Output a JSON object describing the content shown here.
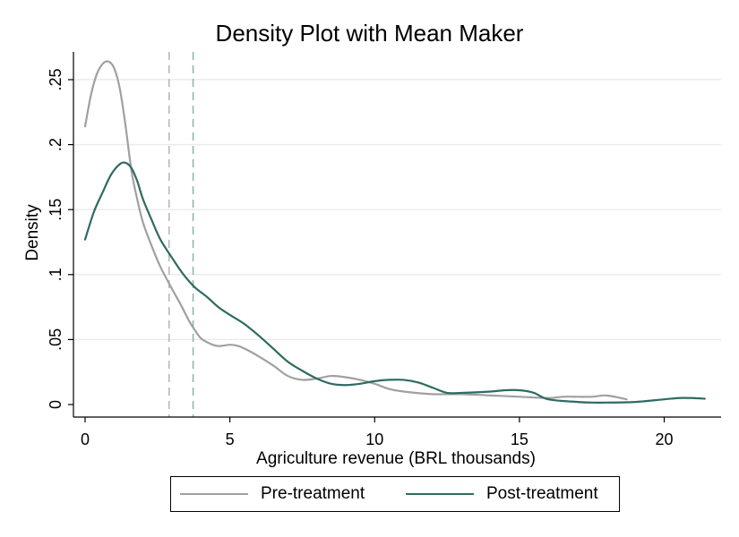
{
  "chart_data": {
    "type": "line",
    "title": "Density Plot with Mean Maker",
    "xlabel": "Agriculture revenue (BRL thousands)",
    "ylabel": "Density",
    "xlim": [
      0,
      21.5
    ],
    "ylim": [
      0,
      0.27
    ],
    "x_ticks": [
      0,
      5,
      10,
      15,
      20
    ],
    "x_tick_labels": [
      "0",
      "5",
      "10",
      "15",
      "20"
    ],
    "y_ticks": [
      0,
      0.05,
      0.1,
      0.15,
      0.2,
      0.25
    ],
    "y_tick_labels": [
      "0",
      ".05",
      ".1",
      ".15",
      ".2",
      ".25"
    ],
    "grid": "horizontal",
    "legend_position": "bottom",
    "series": [
      {
        "name": "Pre-treatment",
        "color": "#a0a0a0",
        "points": [
          [
            0,
            0.214
          ],
          [
            0.2,
            0.238
          ],
          [
            0.4,
            0.254
          ],
          [
            0.6,
            0.262
          ],
          [
            0.8,
            0.264
          ],
          [
            1.0,
            0.259
          ],
          [
            1.2,
            0.243
          ],
          [
            1.4,
            0.214
          ],
          [
            1.6,
            0.18
          ],
          [
            1.8,
            0.158
          ],
          [
            2.0,
            0.14
          ],
          [
            2.3,
            0.122
          ],
          [
            2.6,
            0.106
          ],
          [
            3.0,
            0.089
          ],
          [
            3.3,
            0.077
          ],
          [
            3.6,
            0.064
          ],
          [
            3.8,
            0.057
          ],
          [
            4.0,
            0.051
          ],
          [
            4.3,
            0.047
          ],
          [
            4.6,
            0.045
          ],
          [
            5.0,
            0.046
          ],
          [
            5.3,
            0.045
          ],
          [
            5.6,
            0.042
          ],
          [
            6.0,
            0.037
          ],
          [
            6.5,
            0.03
          ],
          [
            7.0,
            0.022
          ],
          [
            7.5,
            0.019
          ],
          [
            8.0,
            0.02
          ],
          [
            8.5,
            0.022
          ],
          [
            9.0,
            0.021
          ],
          [
            9.5,
            0.019
          ],
          [
            10.0,
            0.016
          ],
          [
            10.5,
            0.012
          ],
          [
            11.0,
            0.01
          ],
          [
            12.0,
            0.008
          ],
          [
            13.0,
            0.008
          ],
          [
            14.0,
            0.007
          ],
          [
            15.0,
            0.006
          ],
          [
            16.0,
            0.005
          ],
          [
            16.5,
            0.006
          ],
          [
            17.0,
            0.006
          ],
          [
            17.5,
            0.006
          ],
          [
            18.0,
            0.007
          ],
          [
            18.5,
            0.005
          ],
          [
            18.7,
            0.004
          ]
        ]
      },
      {
        "name": "Post-treatment",
        "color": "#2e6b62",
        "points": [
          [
            0,
            0.127
          ],
          [
            0.3,
            0.148
          ],
          [
            0.6,
            0.163
          ],
          [
            0.9,
            0.177
          ],
          [
            1.2,
            0.185
          ],
          [
            1.4,
            0.186
          ],
          [
            1.6,
            0.182
          ],
          [
            1.8,
            0.172
          ],
          [
            2.0,
            0.158
          ],
          [
            2.3,
            0.142
          ],
          [
            2.6,
            0.127
          ],
          [
            3.0,
            0.113
          ],
          [
            3.4,
            0.1
          ],
          [
            3.8,
            0.09
          ],
          [
            4.2,
            0.083
          ],
          [
            4.6,
            0.075
          ],
          [
            5.0,
            0.069
          ],
          [
            5.5,
            0.062
          ],
          [
            6.0,
            0.053
          ],
          [
            6.5,
            0.043
          ],
          [
            7.0,
            0.033
          ],
          [
            7.5,
            0.026
          ],
          [
            8.0,
            0.02
          ],
          [
            8.5,
            0.016
          ],
          [
            9.0,
            0.015
          ],
          [
            9.5,
            0.016
          ],
          [
            10.0,
            0.018
          ],
          [
            10.5,
            0.019
          ],
          [
            11.0,
            0.019
          ],
          [
            11.5,
            0.017
          ],
          [
            12.0,
            0.013
          ],
          [
            12.5,
            0.009
          ],
          [
            13.0,
            0.009
          ],
          [
            14.0,
            0.01
          ],
          [
            14.5,
            0.011
          ],
          [
            15.0,
            0.011
          ],
          [
            15.5,
            0.009
          ],
          [
            16.0,
            0.004
          ],
          [
            17.0,
            0.002
          ],
          [
            17.5,
            0.0015
          ],
          [
            18.0,
            0.0015
          ],
          [
            19.0,
            0.002
          ],
          [
            20.0,
            0.004
          ],
          [
            20.5,
            0.005
          ],
          [
            21.0,
            0.005
          ],
          [
            21.4,
            0.0045
          ]
        ]
      }
    ],
    "mean_lines": [
      {
        "series": "Pre-treatment",
        "x": 2.9,
        "color": "#b8b8b8",
        "style": "dashed"
      },
      {
        "series": "Post-treatment",
        "x": 3.73,
        "color": "#8fb8ad",
        "style": "dashed"
      }
    ]
  }
}
